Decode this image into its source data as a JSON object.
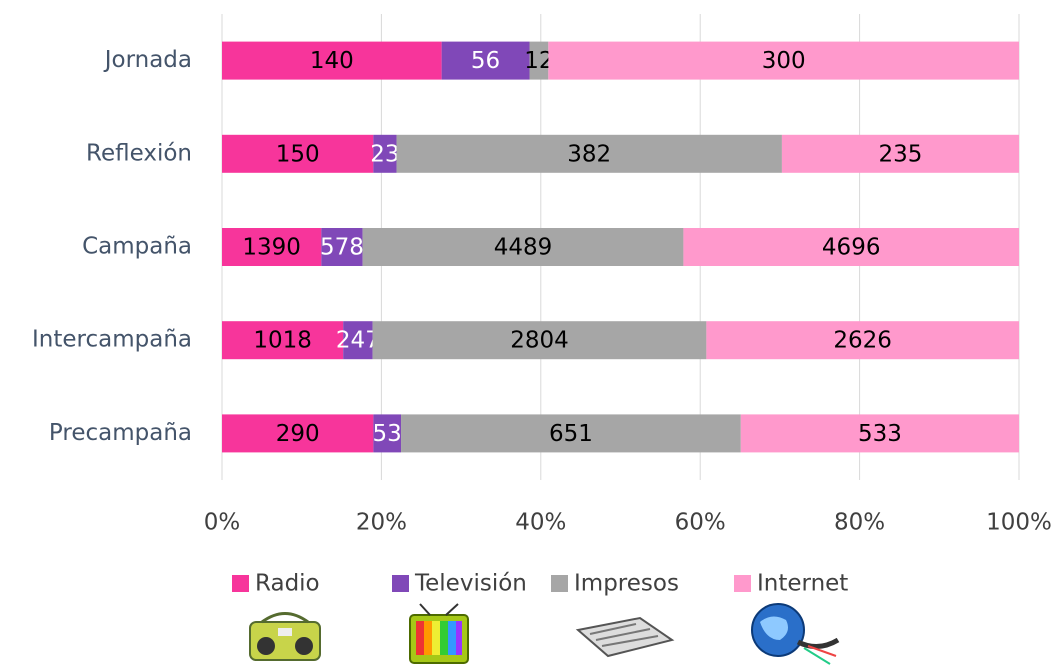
{
  "chart_data": {
    "type": "bar100h",
    "categories": [
      "Jornada",
      "Reflexión",
      "Campaña",
      "Intercampaña",
      "Precampaña"
    ],
    "series": [
      {
        "name": "Radio",
        "color": "#f7359b",
        "label_color": "#000000",
        "values": [
          140,
          150,
          1390,
          1018,
          290
        ]
      },
      {
        "name": "Televisión",
        "color": "#8048b8",
        "label_color": "#ffffff",
        "values": [
          56,
          23,
          578,
          247,
          53
        ]
      },
      {
        "name": "Impresos",
        "color": "#a6a6a6",
        "label_color": "#000000",
        "values": [
          12,
          382,
          4489,
          2804,
          651
        ]
      },
      {
        "name": "Internet",
        "color": "#ff99cc",
        "label_color": "#000000",
        "values": [
          300,
          235,
          4696,
          2626,
          533
        ]
      }
    ],
    "xlim": [
      0,
      100
    ],
    "xticks": [
      {
        "value": 0,
        "label": "0%"
      },
      {
        "value": 20,
        "label": "20%"
      },
      {
        "value": 40,
        "label": "40%"
      },
      {
        "value": 60,
        "label": "60%"
      },
      {
        "value": 80,
        "label": "80%"
      },
      {
        "value": 100,
        "label": "100%"
      }
    ],
    "grid": true,
    "legend": "bottom"
  }
}
